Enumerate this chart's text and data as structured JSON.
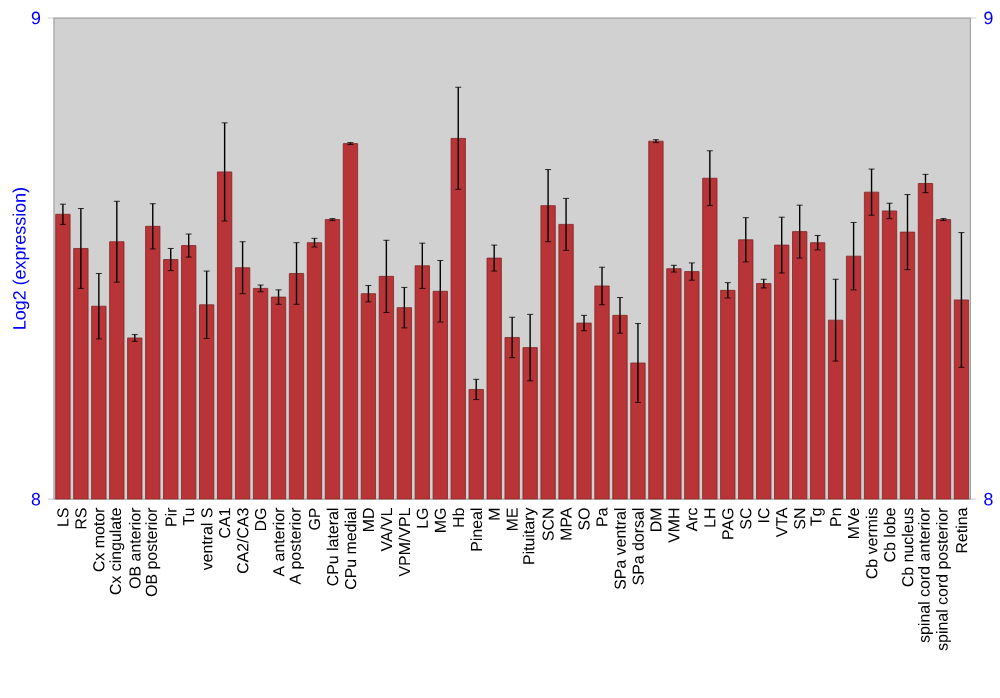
{
  "chart_data": {
    "type": "bar",
    "ylabel": "Log2 (expression)",
    "categories": [
      "LS",
      "RS",
      "Cx motor",
      "Cx cingulate",
      "OB anterior",
      "OB posterior",
      "Pir",
      "Tu",
      "ventral S",
      "CA1",
      "CA2/CA3",
      "DG",
      "A anterior",
      "A posterior",
      "GP",
      "CPu lateral",
      "CPu medial",
      "MD",
      "VA/VL",
      "VPM/VPL",
      "LG",
      "MG",
      "Hb",
      "Pineal",
      "M",
      "ME",
      "Pituitary",
      "SCN",
      "MPA",
      "SO",
      "Pa",
      "SPa ventral",
      "SPa dorsal",
      "DM",
      "VMH",
      "Arc",
      "LH",
      "PAG",
      "SC",
      "IC",
      "VTA",
      "SN",
      "Tg",
      "Pn",
      "MVe",
      "Cb vermis",
      "Cb lobe",
      "Cb nucleus",
      "spinal cord anterior",
      "spinal cord posterior",
      "Retina"
    ],
    "values": [
      8.592,
      8.521,
      8.401,
      8.535,
      8.335,
      8.567,
      8.498,
      8.527,
      8.404,
      8.68,
      8.481,
      8.438,
      8.42,
      8.469,
      8.533,
      8.581,
      8.739,
      8.427,
      8.463,
      8.398,
      8.485,
      8.432,
      8.75,
      8.228,
      8.501,
      8.336,
      8.315,
      8.61,
      8.571,
      8.366,
      8.443,
      8.382,
      8.283,
      8.744,
      8.479,
      8.473,
      8.667,
      8.434,
      8.539,
      8.448,
      8.528,
      8.556,
      8.533,
      8.372,
      8.505,
      8.638,
      8.599,
      8.555,
      8.656,
      8.581,
      8.414
    ],
    "errors": [
      0.021,
      0.083,
      0.068,
      0.084,
      0.007,
      0.047,
      0.023,
      0.024,
      0.07,
      0.102,
      0.054,
      0.007,
      0.015,
      0.064,
      0.009,
      0.002,
      0.002,
      0.017,
      0.075,
      0.042,
      0.047,
      0.064,
      0.106,
      0.021,
      0.027,
      0.042,
      0.069,
      0.075,
      0.054,
      0.016,
      0.039,
      0.037,
      0.082,
      0.003,
      0.007,
      0.018,
      0.057,
      0.016,
      0.046,
      0.009,
      0.058,
      0.055,
      0.015,
      0.085,
      0.07,
      0.048,
      0.016,
      0.078,
      0.019,
      0.002,
      0.14
    ],
    "color": "#b83436",
    "ylim": [
      8,
      9
    ],
    "yticks": [
      8,
      9
    ],
    "y2lim": [
      8,
      9
    ],
    "y2ticks": [
      8,
      9
    ]
  }
}
